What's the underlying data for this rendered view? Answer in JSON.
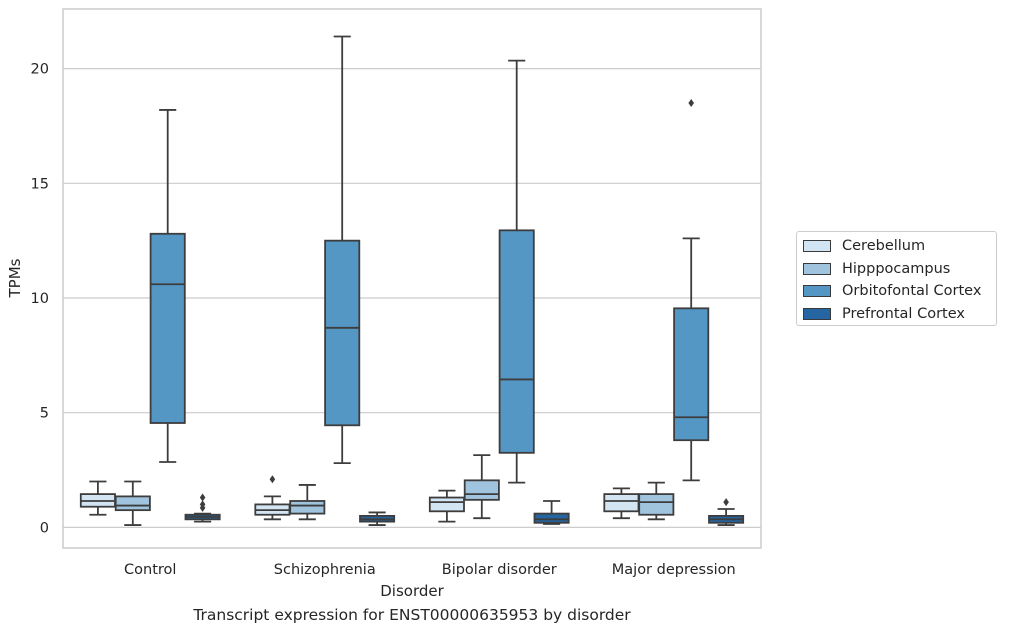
{
  "chart_data": {
    "type": "box",
    "caption": "Transcript expression for ENST00000635953 by disorder",
    "xlabel": "Disorder",
    "ylabel": "TPMs",
    "ylim": [
      -0.9,
      22.6
    ],
    "yticks": [
      0,
      5,
      10,
      15,
      20
    ],
    "grid": true,
    "legend_position": "right-center",
    "categories": [
      "Control",
      "Schizophrenia",
      "Bipolar disorder",
      "Major depression"
    ],
    "series": [
      {
        "name": "Cerebellum",
        "color": "#d3e4f3",
        "boxes": [
          {
            "whislo": 0.55,
            "q1": 0.9,
            "med": 1.15,
            "q3": 1.45,
            "whishi": 2.0,
            "fliers": []
          },
          {
            "whislo": 0.35,
            "q1": 0.55,
            "med": 0.75,
            "q3": 1.0,
            "whishi": 1.35,
            "fliers": [
              2.1
            ]
          },
          {
            "whislo": 0.25,
            "q1": 0.7,
            "med": 1.1,
            "q3": 1.3,
            "whishi": 1.6,
            "fliers": []
          },
          {
            "whislo": 0.4,
            "q1": 0.7,
            "med": 1.15,
            "q3": 1.45,
            "whishi": 1.7,
            "fliers": []
          }
        ]
      },
      {
        "name": "Hipppocampus",
        "color": "#a0c4dd",
        "boxes": [
          {
            "whislo": 0.1,
            "q1": 0.75,
            "med": 0.95,
            "q3": 1.35,
            "whishi": 2.0,
            "fliers": []
          },
          {
            "whislo": 0.35,
            "q1": 0.6,
            "med": 0.95,
            "q3": 1.15,
            "whishi": 1.85,
            "fliers": []
          },
          {
            "whislo": 0.4,
            "q1": 1.2,
            "med": 1.45,
            "q3": 2.05,
            "whishi": 3.15,
            "fliers": []
          },
          {
            "whislo": 0.35,
            "q1": 0.55,
            "med": 1.1,
            "q3": 1.45,
            "whishi": 1.95,
            "fliers": []
          }
        ]
      },
      {
        "name": "Orbitofontal Cortex",
        "color": "#5496c4",
        "boxes": [
          {
            "whislo": 2.85,
            "q1": 4.55,
            "med": 10.6,
            "q3": 12.8,
            "whishi": 18.2,
            "fliers": []
          },
          {
            "whislo": 2.8,
            "q1": 4.45,
            "med": 8.7,
            "q3": 12.5,
            "whishi": 21.4,
            "fliers": []
          },
          {
            "whislo": 1.95,
            "q1": 3.25,
            "med": 6.45,
            "q3": 12.95,
            "whishi": 20.35,
            "fliers": []
          },
          {
            "whislo": 2.05,
            "q1": 3.8,
            "med": 4.8,
            "q3": 9.55,
            "whishi": 12.6,
            "fliers": [
              18.5
            ]
          }
        ]
      },
      {
        "name": "Prefrontal Cortex",
        "color": "#2565a2",
        "boxes": [
          {
            "whislo": 0.25,
            "q1": 0.35,
            "med": 0.45,
            "q3": 0.55,
            "whishi": 0.6,
            "fliers": [
              0.85,
              1.0,
              1.3
            ]
          },
          {
            "whislo": 0.1,
            "q1": 0.25,
            "med": 0.35,
            "q3": 0.5,
            "whishi": 0.65,
            "fliers": []
          },
          {
            "whislo": 0.15,
            "q1": 0.2,
            "med": 0.35,
            "q3": 0.6,
            "whishi": 1.15,
            "fliers": []
          },
          {
            "whislo": 0.1,
            "q1": 0.2,
            "med": 0.35,
            "q3": 0.5,
            "whishi": 0.8,
            "fliers": [
              1.1
            ]
          }
        ]
      }
    ]
  }
}
